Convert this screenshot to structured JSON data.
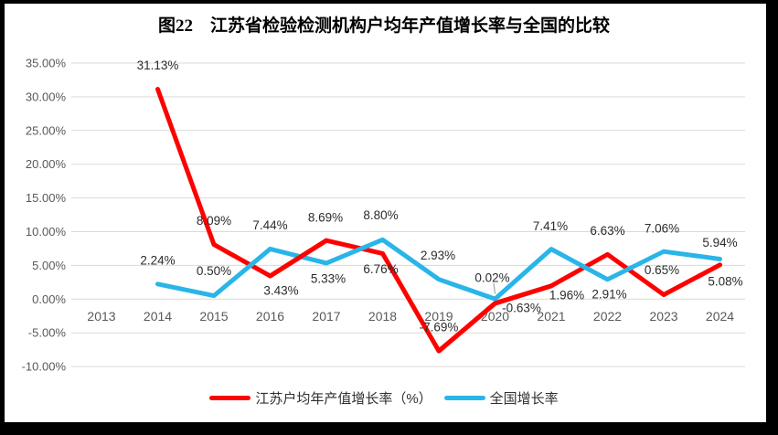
{
  "title": "图22　江苏省检验检测机构户均年产值增长率与全国的比较",
  "colors": {
    "frame": "#000000",
    "background": "#FFFFFF",
    "gridline": "#D9D9D9",
    "axis_text": "#595959",
    "data_label_text": "#2B2B2B",
    "leader_line": "#A6A6A6",
    "jiangsu_series": "#FF0000",
    "national_series": "#29B5E8"
  },
  "chart_data": {
    "type": "line",
    "title": "图22　江苏省检验检测机构户均年产值增长率与全国的比较",
    "categories": [
      "2013",
      "2014",
      "2015",
      "2016",
      "2017",
      "2018",
      "2019",
      "2020",
      "2021",
      "2022",
      "2023",
      "2024"
    ],
    "series": [
      {
        "name": "江苏户均年产值增长率（%）",
        "color": "#FF0000",
        "values": [
          null,
          31.13,
          8.09,
          3.43,
          8.69,
          6.76,
          -7.69,
          -0.63,
          1.96,
          6.63,
          0.65,
          5.08
        ]
      },
      {
        "name": "全国增长率",
        "color": "#29B5E8",
        "values": [
          null,
          2.24,
          0.5,
          7.44,
          5.33,
          8.8,
          2.93,
          0.02,
          7.41,
          2.91,
          7.06,
          5.94
        ]
      }
    ],
    "xlabel": "",
    "ylabel": "",
    "ylim": [
      -10,
      35
    ],
    "ytick_step": 5,
    "ytick_labels": [
      "-10.00%",
      "-5.00%",
      "0.00%",
      "5.00%",
      "10.00%",
      "15.00%",
      "20.00%",
      "25.00%",
      "30.00%",
      "35.00%"
    ],
    "data_label_format": "two decimals + %",
    "grid": true,
    "legend_position": "bottom"
  }
}
